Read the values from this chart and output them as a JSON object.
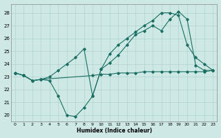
{
  "xlabel": "Humidex (Indice chaleur)",
  "xlim": [
    -0.5,
    23.5
  ],
  "ylim": [
    19.5,
    28.7
  ],
  "xticks": [
    0,
    1,
    2,
    3,
    4,
    5,
    6,
    7,
    8,
    9,
    10,
    11,
    12,
    13,
    14,
    15,
    16,
    17,
    18,
    19,
    20,
    21,
    22,
    23
  ],
  "yticks": [
    20,
    21,
    22,
    23,
    24,
    25,
    26,
    27,
    28
  ],
  "background_color": "#cde8e5",
  "grid_color": "#b0d4d0",
  "line_color": "#1a6e62",
  "series": [
    {
      "x": [
        0,
        1,
        2,
        3,
        4,
        5,
        6,
        7,
        8,
        9,
        10,
        11,
        12,
        13,
        14,
        15,
        16,
        17,
        18,
        19,
        20,
        21,
        22,
        23
      ],
      "y": [
        23.3,
        23.1,
        22.7,
        22.8,
        22.7,
        21.5,
        20.0,
        19.9,
        20.6,
        21.5,
        23.6,
        24.1,
        24.7,
        25.5,
        26.3,
        26.6,
        27.0,
        26.6,
        27.5,
        28.1,
        27.5,
        23.9,
        23.5,
        23.5
      ]
    },
    {
      "x": [
        0,
        1,
        2,
        3,
        9,
        10,
        11,
        12,
        13,
        14,
        15,
        16,
        17,
        18,
        19,
        20,
        21,
        22,
        23
      ],
      "y": [
        23.3,
        23.1,
        22.7,
        22.8,
        23.1,
        23.2,
        23.2,
        23.3,
        23.3,
        23.3,
        23.4,
        23.4,
        23.4,
        23.4,
        23.4,
        23.4,
        23.4,
        23.4,
        23.5
      ]
    },
    {
      "x": [
        0,
        1,
        2,
        3,
        4,
        5,
        6,
        7,
        8,
        9,
        10,
        11,
        12,
        13,
        14,
        15,
        16,
        17,
        18,
        19,
        20,
        21,
        22,
        23
      ],
      "y": [
        23.3,
        23.1,
        22.7,
        22.8,
        23.0,
        23.5,
        24.0,
        24.5,
        25.2,
        21.5,
        23.6,
        24.8,
        25.5,
        26.0,
        26.5,
        27.0,
        27.4,
        28.0,
        28.0,
        27.8,
        25.5,
        24.5,
        24.0,
        23.5
      ]
    }
  ]
}
